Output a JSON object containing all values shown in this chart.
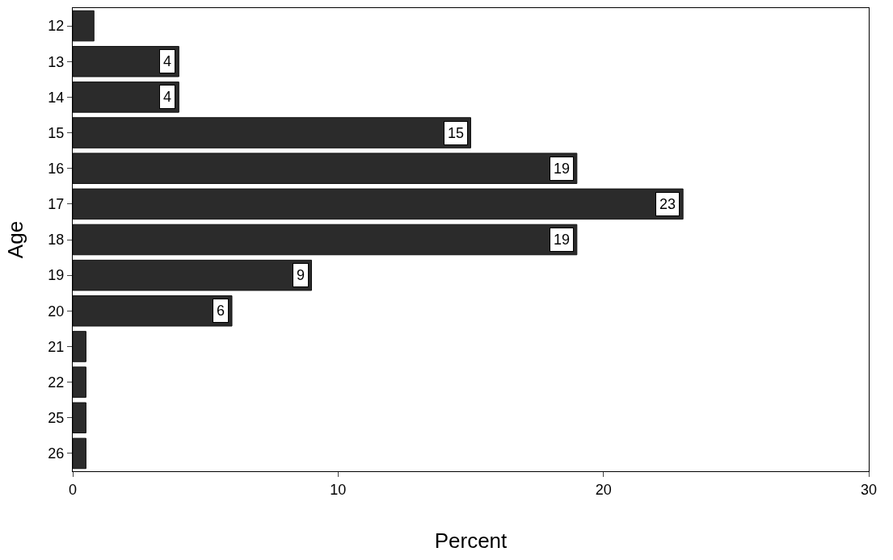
{
  "chart_data": {
    "type": "bar",
    "orientation": "horizontal",
    "xlabel": "Percent",
    "ylabel": "Age",
    "categories": [
      "12",
      "13",
      "14",
      "15",
      "16",
      "17",
      "18",
      "19",
      "20",
      "21",
      "22",
      "25",
      "26"
    ],
    "values": [
      0.8,
      4,
      4,
      15,
      19,
      23,
      19,
      9,
      6,
      0.5,
      0.5,
      0.5,
      0.5
    ],
    "value_labels": [
      null,
      "4",
      "4",
      "15",
      "19",
      "23",
      "19",
      "9",
      "6",
      null,
      null,
      null,
      null
    ],
    "color": "#2b2b2b",
    "xlim": [
      0,
      30
    ],
    "xticks": [
      0,
      10,
      20,
      30
    ],
    "grid": false
  }
}
